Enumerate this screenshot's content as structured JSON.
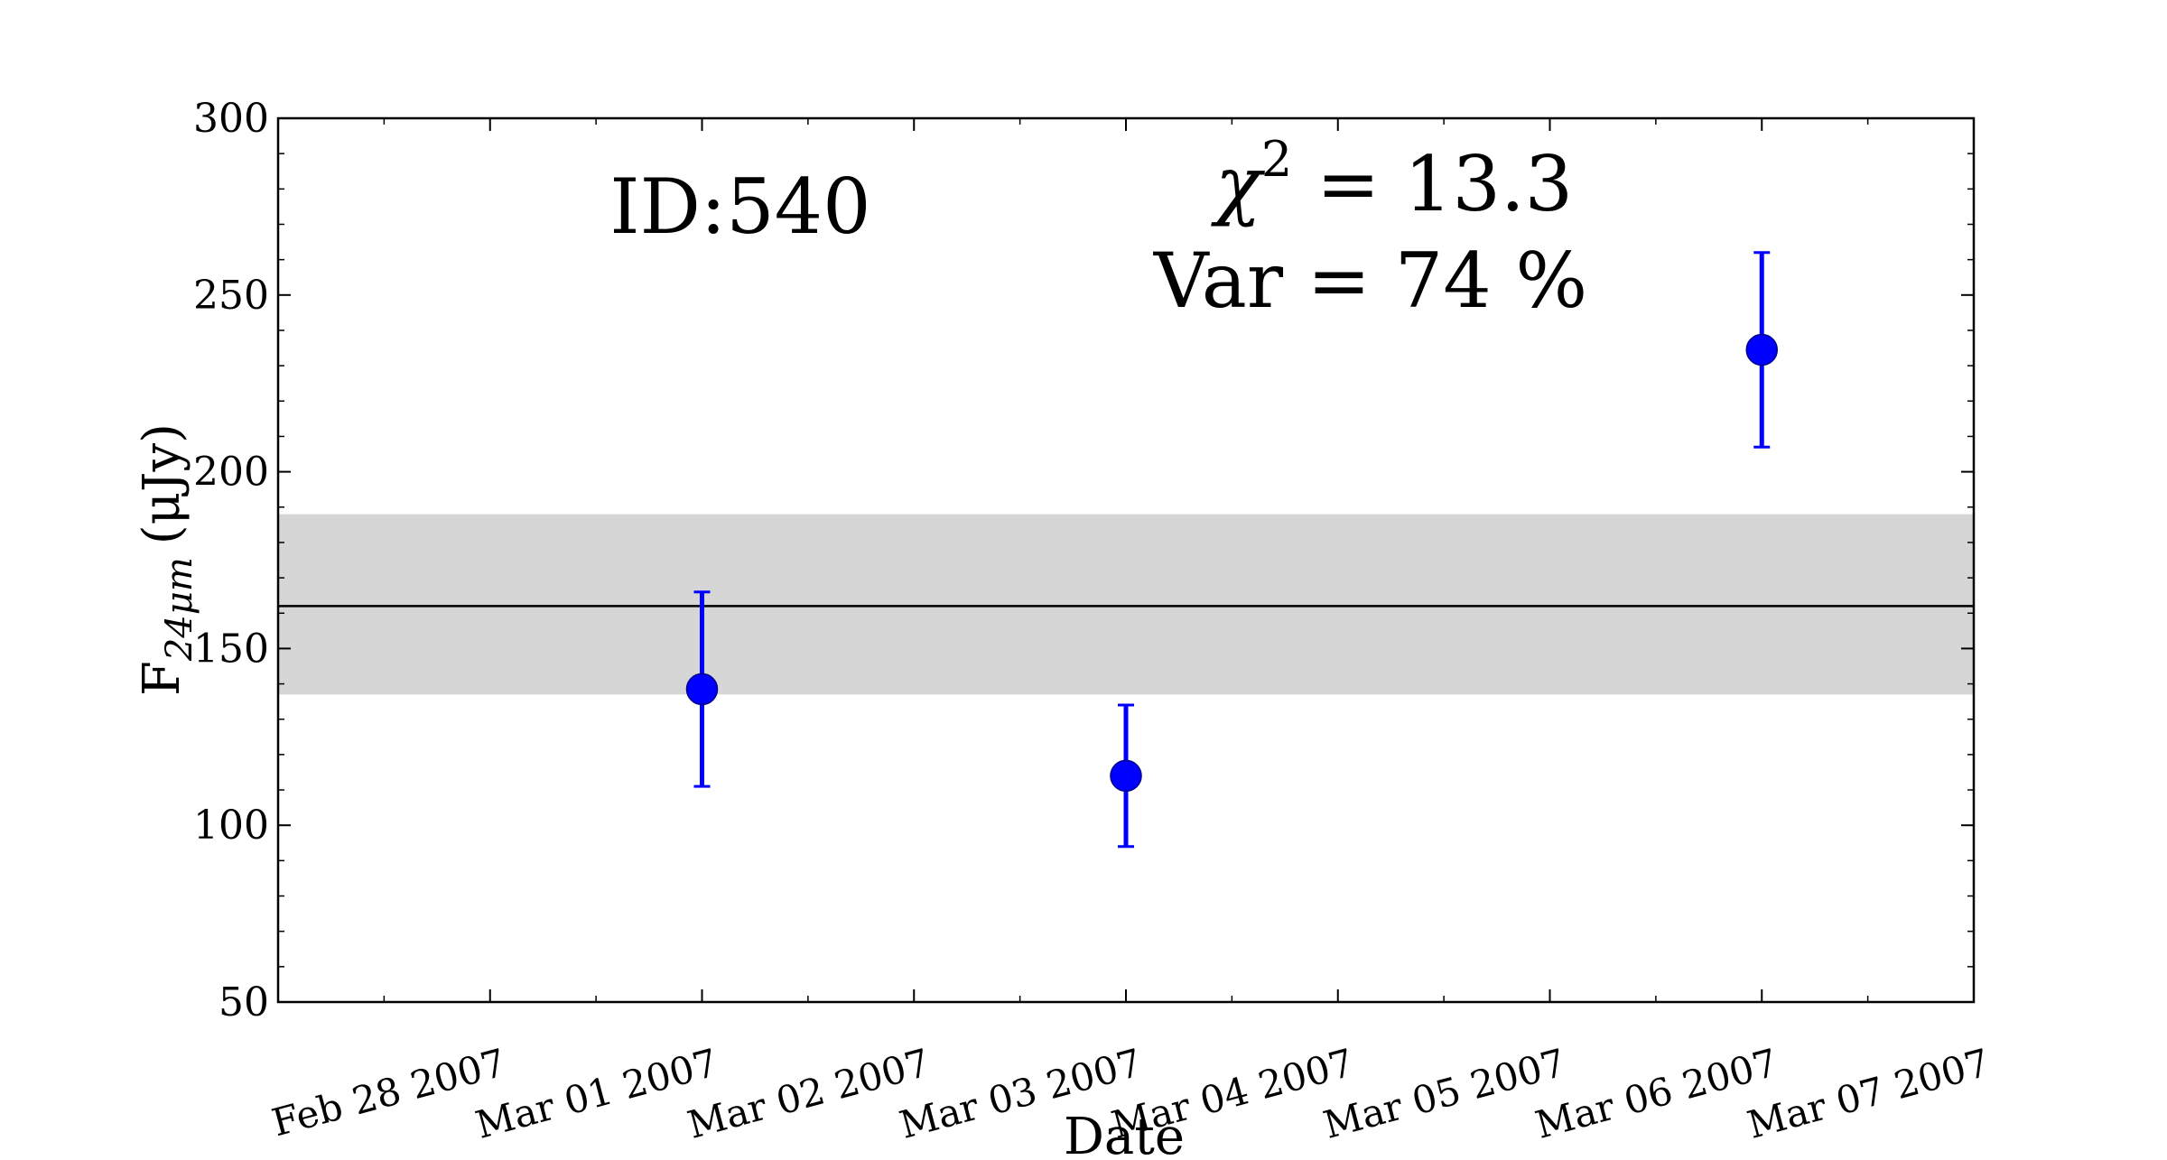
{
  "chart_data": {
    "type": "scatter",
    "xlabel": "Date",
    "ylabel": {
      "base": "F",
      "subscript": "24μm",
      "unit": "(μJy)"
    },
    "ylim": [
      50,
      300
    ],
    "yticks": [
      "50",
      "100",
      "150",
      "200",
      "250",
      "300"
    ],
    "xlim": [
      "2007-02-27",
      "2007-03-07"
    ],
    "xticks": [
      {
        "date": "2007-02-28",
        "label": "Feb 28 2007"
      },
      {
        "date": "2007-03-01",
        "label": "Mar 01 2007"
      },
      {
        "date": "2007-03-02",
        "label": "Mar 02 2007"
      },
      {
        "date": "2007-03-03",
        "label": "Mar 03 2007"
      },
      {
        "date": "2007-03-04",
        "label": "Mar 04 2007"
      },
      {
        "date": "2007-03-05",
        "label": "Mar 05 2007"
      },
      {
        "date": "2007-03-06",
        "label": "Mar 06 2007"
      },
      {
        "date": "2007-03-07",
        "label": "Mar 07 2007"
      }
    ],
    "points": [
      {
        "x": "2007-03-01",
        "y": 138.5,
        "ylow": 111,
        "yhigh": 166
      },
      {
        "x": "2007-03-03",
        "y": 114,
        "ylow": 94,
        "yhigh": 134
      },
      {
        "x": "2007-03-06",
        "y": 234.5,
        "ylow": 207,
        "yhigh": 262
      }
    ],
    "mean_line": 162,
    "band": [
      137,
      188
    ],
    "annotations": {
      "id": "ID:540",
      "chi2_symbol": "χ",
      "chi2_exp": "2",
      "chi2_value": " = 13.3",
      "var": "Var = 74 %"
    },
    "colors": {
      "points": "#0000ff",
      "band": "#d6d6d6",
      "mean_line": "#000000"
    },
    "grid": false
  }
}
